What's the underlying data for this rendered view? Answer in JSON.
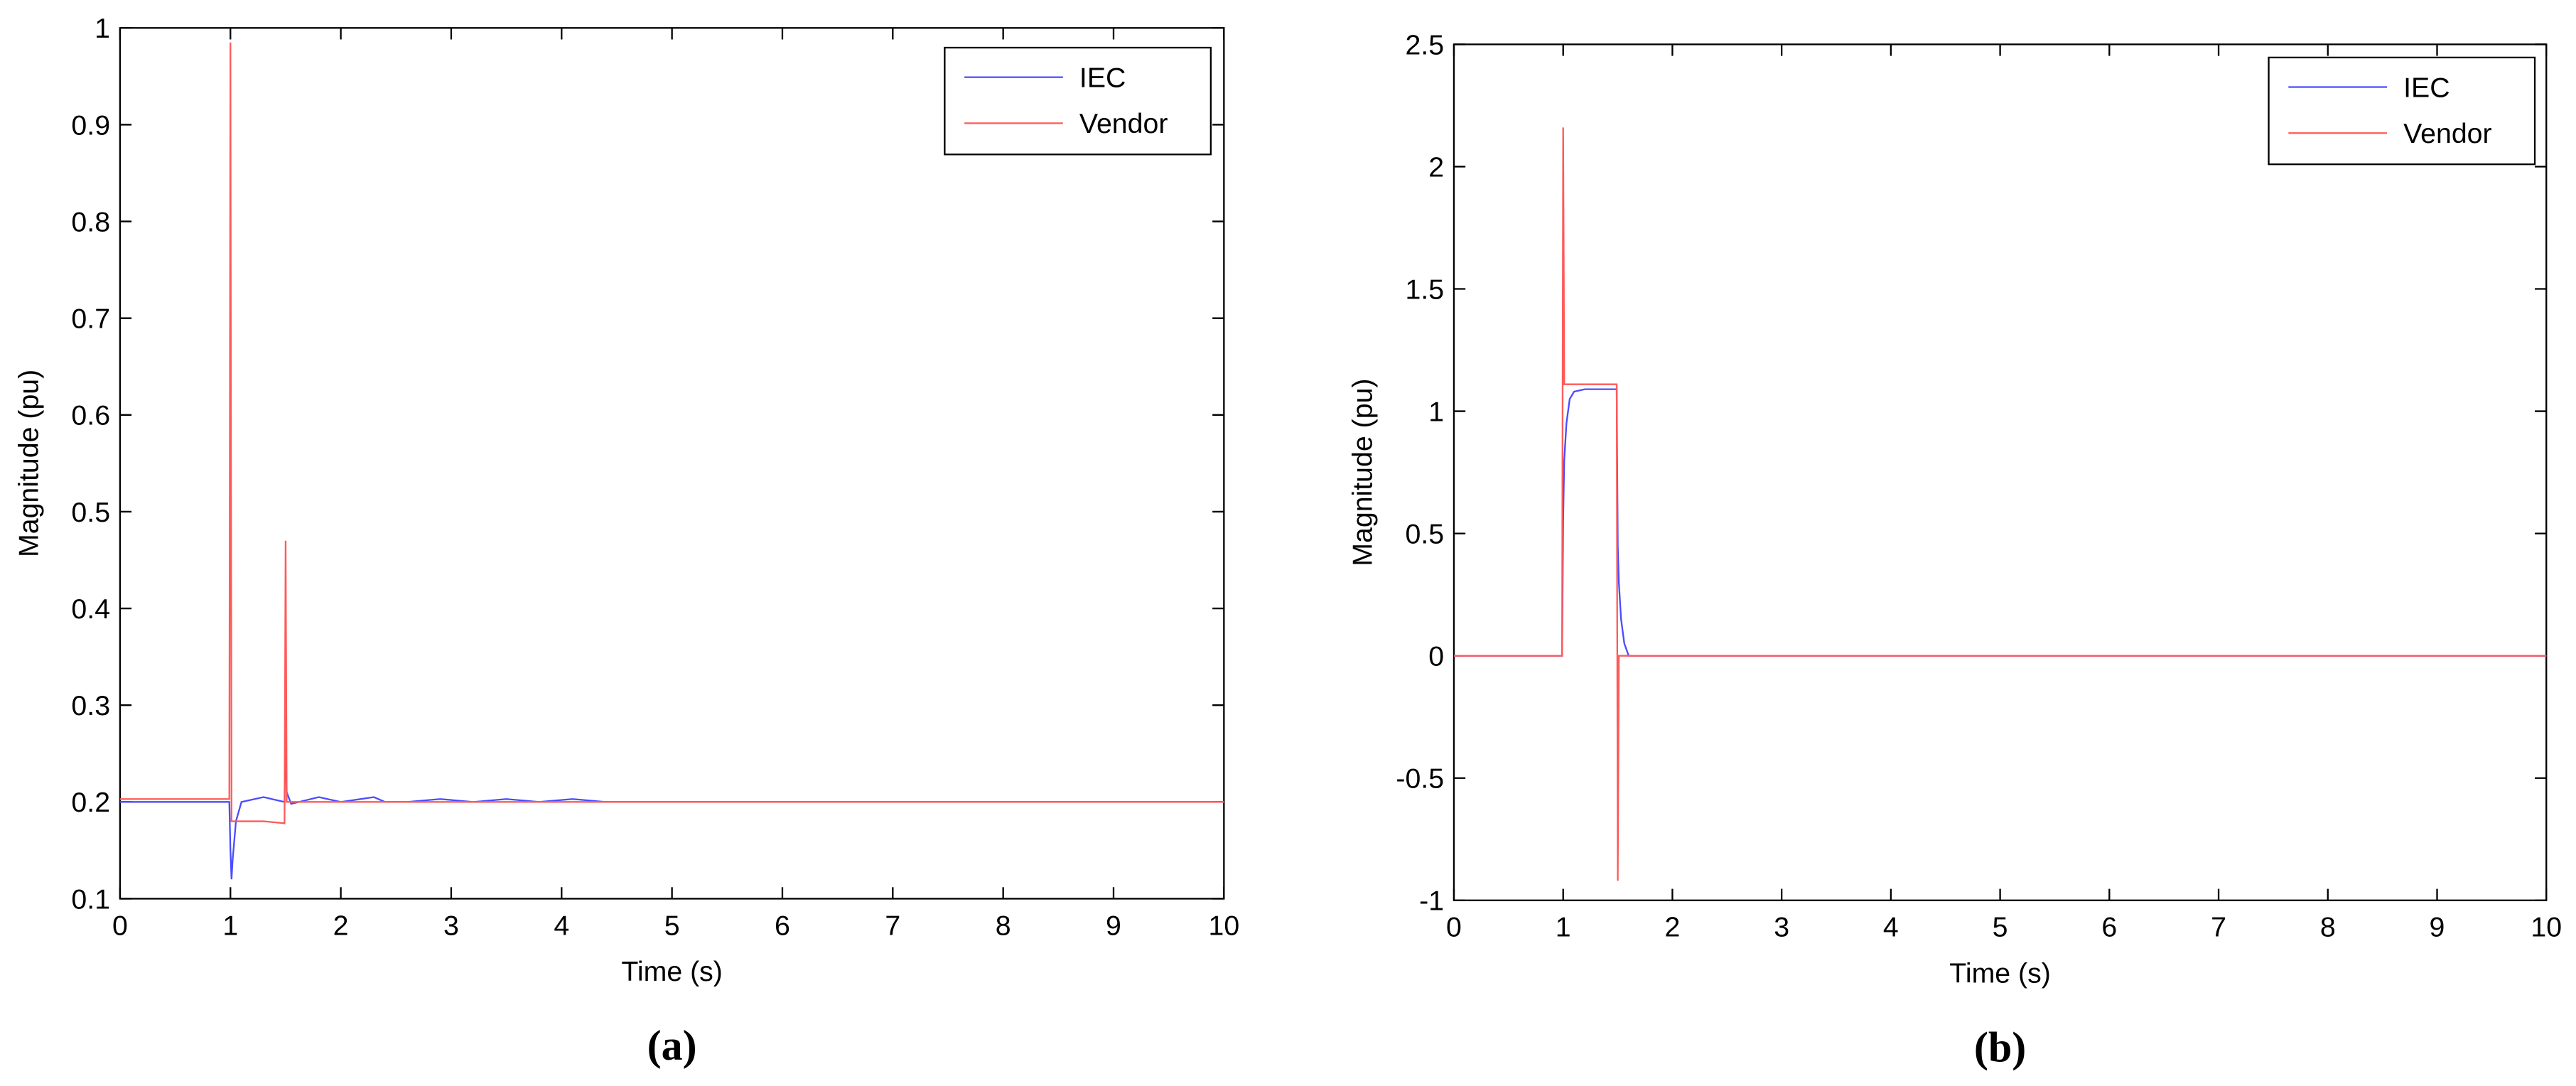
{
  "chart_data": [
    {
      "type": "line",
      "caption": "(a)",
      "xlabel": "Time (s)",
      "ylabel": "Magnitude (pu)",
      "xlim": [
        0,
        10
      ],
      "xticks": [
        0,
        1,
        2,
        3,
        4,
        5,
        6,
        7,
        8,
        9,
        10
      ],
      "ylim": [
        0.1,
        1
      ],
      "yticks": [
        0.1,
        0.2,
        0.3,
        0.4,
        0.5,
        0.6,
        0.7,
        0.8,
        0.9,
        1
      ],
      "legend": "upper right",
      "x": [
        0,
        0.99,
        1.0,
        1.01,
        1.02,
        1.05,
        1.1,
        1.3,
        1.49,
        1.5,
        1.51,
        1.55,
        1.8,
        2.0,
        2.3,
        2.4,
        2.6,
        2.9,
        3.2,
        3.5,
        3.8,
        4.1,
        4.4,
        10
      ],
      "series": [
        {
          "name": "IEC",
          "color": "#4b4bff",
          "values": [
            0.2,
            0.2,
            0.15,
            0.12,
            0.14,
            0.18,
            0.2,
            0.205,
            0.2,
            0.285,
            0.21,
            0.198,
            0.205,
            0.2,
            0.205,
            0.2,
            0.2,
            0.203,
            0.2,
            0.203,
            0.2,
            0.203,
            0.2,
            0.2
          ]
        },
        {
          "name": "Vendor",
          "color": "#ff5a5a",
          "values": [
            0.203,
            0.203,
            0.985,
            0.18,
            0.18,
            0.18,
            0.18,
            0.18,
            0.178,
            0.47,
            0.2,
            0.2,
            0.2,
            0.2,
            0.2,
            0.2,
            0.2,
            0.2,
            0.2,
            0.2,
            0.2,
            0.2,
            0.2,
            0.2
          ]
        }
      ]
    },
    {
      "type": "line",
      "caption": "(b)",
      "xlabel": "Time (s)",
      "ylabel": "Magnitude (pu)",
      "xlim": [
        0,
        10
      ],
      "xticks": [
        0,
        1,
        2,
        3,
        4,
        5,
        6,
        7,
        8,
        9,
        10
      ],
      "ylim": [
        -1,
        2.5
      ],
      "yticks": [
        -1,
        -0.5,
        0,
        0.5,
        1,
        1.5,
        2,
        2.5
      ],
      "legend": "upper right",
      "x": [
        0,
        0.99,
        1.0,
        1.01,
        1.03,
        1.06,
        1.1,
        1.2,
        1.49,
        1.5,
        1.51,
        1.53,
        1.56,
        1.6,
        10
      ],
      "series": [
        {
          "name": "IEC",
          "color": "#4b4bff",
          "values": [
            0,
            0,
            0.55,
            0.8,
            0.95,
            1.05,
            1.08,
            1.09,
            1.09,
            0.45,
            0.3,
            0.15,
            0.05,
            0,
            0
          ]
        },
        {
          "name": "Vendor",
          "color": "#ff5a5a",
          "values": [
            0,
            0,
            2.16,
            1.11,
            1.11,
            1.11,
            1.11,
            1.11,
            1.11,
            -0.92,
            0,
            0,
            0,
            0,
            0
          ]
        }
      ]
    }
  ]
}
